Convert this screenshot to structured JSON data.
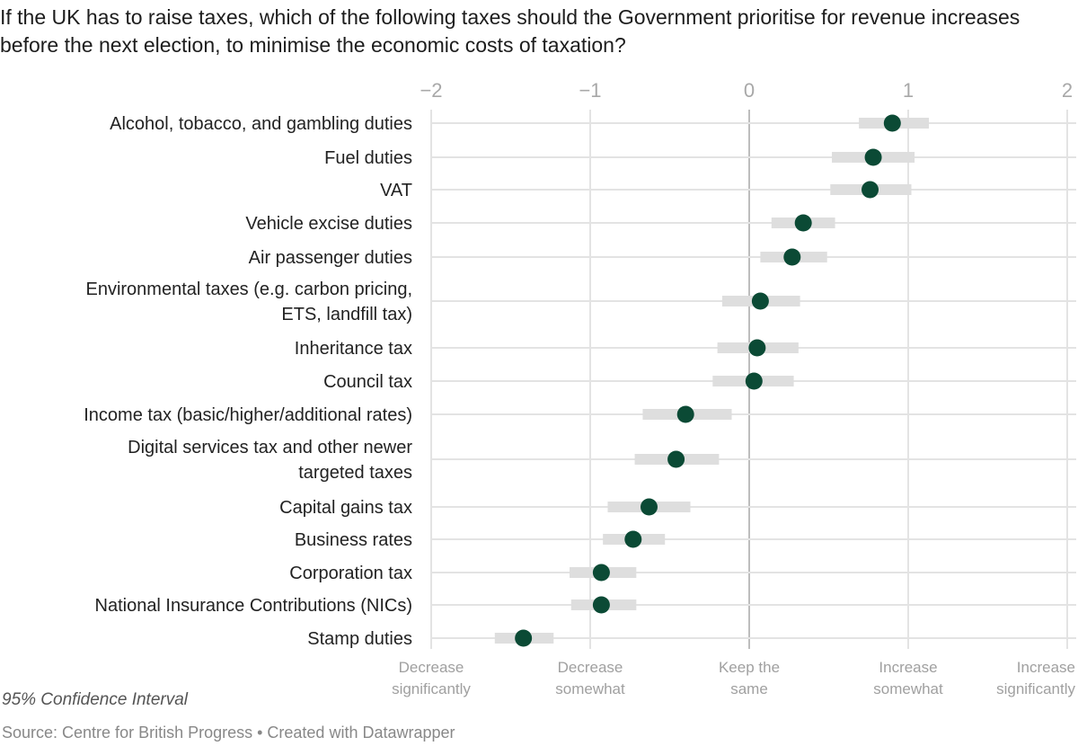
{
  "title": "If the UK has to raise taxes, which of the following taxes should the Government prioritise for revenue increases before the next election, to minimise the economic costs of taxation?",
  "note": "95% Confidence Interval",
  "source": "Source: Centre for British Progress • Created with Datawrapper",
  "colors": {
    "dot": "#0b4a35",
    "ci": "#dedede",
    "grid": "#e3e3e3",
    "zero": "#bdbdbd"
  },
  "chart_data": {
    "type": "dot-range",
    "xlim": [
      -2,
      2
    ],
    "xticks": [
      -2,
      -1,
      0,
      1,
      2
    ],
    "xtick_labels": [
      "−2",
      "−1",
      "0",
      "1",
      "2"
    ],
    "scale_labels": [
      {
        "value": -2,
        "lines": [
          "Decrease",
          "significantly"
        ]
      },
      {
        "value": -1,
        "lines": [
          "Decrease",
          "somewhat"
        ]
      },
      {
        "value": 0,
        "lines": [
          "Keep the",
          "same"
        ]
      },
      {
        "value": 1,
        "lines": [
          "Increase",
          "somewhat"
        ]
      },
      {
        "value": 2,
        "lines": [
          "Increase",
          "significantly"
        ]
      }
    ],
    "grid": true,
    "rows": [
      {
        "label": [
          "Alcohol, tobacco, and gambling duties"
        ],
        "value": 0.9,
        "ci": [
          0.69,
          1.13
        ]
      },
      {
        "label": [
          "Fuel duties"
        ],
        "value": 0.78,
        "ci": [
          0.52,
          1.04
        ]
      },
      {
        "label": [
          "VAT"
        ],
        "value": 0.76,
        "ci": [
          0.51,
          1.02
        ]
      },
      {
        "label": [
          "Vehicle excise duties"
        ],
        "value": 0.34,
        "ci": [
          0.14,
          0.54
        ]
      },
      {
        "label": [
          "Air passenger duties"
        ],
        "value": 0.27,
        "ci": [
          0.07,
          0.49
        ]
      },
      {
        "label": [
          "Environmental taxes (e.g. carbon pricing,",
          "ETS, landfill tax)"
        ],
        "value": 0.07,
        "ci": [
          -0.17,
          0.32
        ]
      },
      {
        "label": [
          "Inheritance tax"
        ],
        "value": 0.05,
        "ci": [
          -0.2,
          0.31
        ]
      },
      {
        "label": [
          "Council tax"
        ],
        "value": 0.03,
        "ci": [
          -0.23,
          0.28
        ]
      },
      {
        "label": [
          "Income tax (basic/higher/additional rates)"
        ],
        "value": -0.4,
        "ci": [
          -0.67,
          -0.11
        ]
      },
      {
        "label": [
          "Digital services tax and other newer",
          "targeted taxes"
        ],
        "value": -0.46,
        "ci": [
          -0.72,
          -0.19
        ]
      },
      {
        "label": [
          "Capital gains tax"
        ],
        "value": -0.63,
        "ci": [
          -0.89,
          -0.37
        ]
      },
      {
        "label": [
          "Business rates"
        ],
        "value": -0.73,
        "ci": [
          -0.92,
          -0.53
        ]
      },
      {
        "label": [
          "Corporation tax"
        ],
        "value": -0.93,
        "ci": [
          -1.13,
          -0.71
        ]
      },
      {
        "label": [
          "National Insurance Contributions (NICs)"
        ],
        "value": -0.93,
        "ci": [
          -1.12,
          -0.71
        ]
      },
      {
        "label": [
          "Stamp duties"
        ],
        "value": -1.42,
        "ci": [
          -1.6,
          -1.23
        ]
      }
    ]
  }
}
